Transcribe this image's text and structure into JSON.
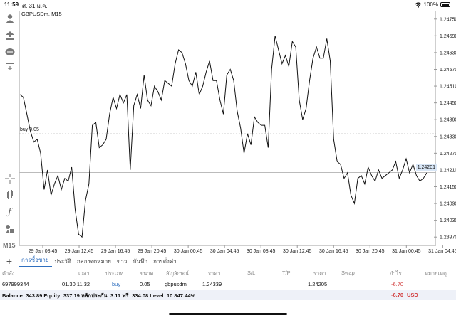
{
  "status_bar": {
    "time": "11:59",
    "date": "ศ. 31 ม.ค.",
    "battery": "100%"
  },
  "chart": {
    "title": "GBPUSDm, M15",
    "buy_line_label": "buy 0.05",
    "current_price": "1.24201"
  },
  "toolbar": {
    "timeframe": "M15"
  },
  "chart_data": {
    "type": "line",
    "symbol": "GBPUSDm",
    "timeframe": "M15",
    "x_ticks": [
      "29 Jan 08:45",
      "29 Jan 12:45",
      "29 Jan 16:45",
      "29 Jan 20:45",
      "30 Jan 00:45",
      "30 Jan 04:45",
      "30 Jan 08:45",
      "30 Jan 12:45",
      "30 Jan 16:45",
      "30 Jan 20:45",
      "31 Jan 00:45",
      "31 Jan 04:45"
    ],
    "y_ticks": [
      "1.24750",
      "1.24690",
      "1.24630",
      "1.24570",
      "1.24510",
      "1.24450",
      "1.24390",
      "1.24330",
      "1.24270",
      "1.24210",
      "1.24150",
      "1.24090",
      "1.24030",
      "1.23970"
    ],
    "ylim": [
      1.2394,
      1.2478
    ],
    "buy_level": 1.24339,
    "current": 1.24201,
    "values": [
      1.2448,
      1.2447,
      1.2441,
      1.2435,
      1.2431,
      1.2432,
      1.2427,
      1.2414,
      1.2421,
      1.2412,
      1.2416,
      1.2419,
      1.2414,
      1.2418,
      1.2417,
      1.2422,
      1.2407,
      1.2398,
      1.2397,
      1.241,
      1.2416,
      1.2437,
      1.2438,
      1.2429,
      1.243,
      1.2432,
      1.2441,
      1.2447,
      1.2443,
      1.2448,
      1.2445,
      1.2448,
      1.2421,
      1.2444,
      1.2448,
      1.2443,
      1.2455,
      1.2446,
      1.2444,
      1.2451,
      1.2449,
      1.2446,
      1.2453,
      1.2452,
      1.2451,
      1.2459,
      1.2464,
      1.2463,
      1.2459,
      1.2453,
      1.2451,
      1.2456,
      1.2448,
      1.2451,
      1.2456,
      1.246,
      1.2453,
      1.2453,
      1.2446,
      1.2441,
      1.2455,
      1.2457,
      1.2453,
      1.2442,
      1.2436,
      1.2427,
      1.2434,
      1.243,
      1.244,
      1.2438,
      1.2437,
      1.2437,
      1.2429,
      1.2457,
      1.2469,
      1.2464,
      1.2459,
      1.2462,
      1.2458,
      1.2467,
      1.2465,
      1.2446,
      1.2439,
      1.2443,
      1.2453,
      1.2461,
      1.2465,
      1.2461,
      1.2461,
      1.2468,
      1.246,
      1.2432,
      1.2424,
      1.2423,
      1.2418,
      1.242,
      1.2412,
      1.2409,
      1.2418,
      1.2419,
      1.2416,
      1.2422,
      1.2419,
      1.2417,
      1.2421,
      1.2418,
      1.2419,
      1.242,
      1.2421,
      1.2424,
      1.2418,
      1.2421,
      1.2425,
      1.242,
      1.2423,
      1.2419,
      1.2417,
      1.2418,
      1.242
    ]
  },
  "tabs": [
    "การซื้อขาย",
    "ประวัติ",
    "กล่องจดหมาย",
    "ข่าว",
    "บันทึก",
    "การตั้งค่า"
  ],
  "table": {
    "headers": [
      "คำสั่ง",
      "เวลา",
      "ประเภท",
      "ขนาด",
      "สัญลักษณ์",
      "ราคา",
      "S/L",
      "T/P",
      "ราคา",
      "Swap",
      "กำไร",
      "หมายเหตุ"
    ],
    "row": {
      "order": "697999344",
      "time": "01.30 11:32",
      "type": "buy",
      "size": "0.05",
      "symbol": "gbpusdm",
      "open_price": "1.24339",
      "close_price": "1.24205",
      "profit": "-6.70"
    },
    "summary": {
      "text": "Balance: 343.89 Equity: 337.19 หลักประกัน: 3.11 ฟรี: 334.08 Level: 10 847.44%",
      "profit": "-6.70",
      "currency": "USD"
    }
  },
  "colors": {
    "accent": "#2f6fbf",
    "loss": "#d23c3c",
    "line": "#111111",
    "price_tag_bg": "#d8e6f6"
  }
}
